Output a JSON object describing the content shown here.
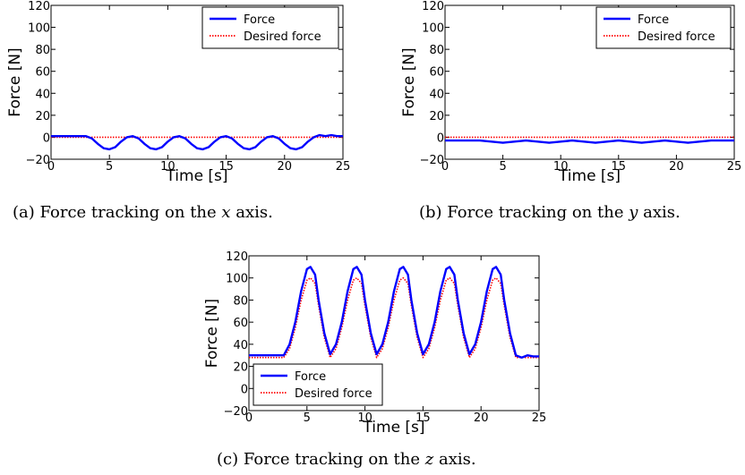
{
  "captions": [
    {
      "before": "(a) Force tracking on the ",
      "var": "x",
      "after": " axis."
    },
    {
      "before": "(b) Force tracking on the ",
      "var": "y",
      "after": " axis."
    },
    {
      "before": "(c) Force tracking on the ",
      "var": "z",
      "after": " axis."
    }
  ],
  "chart_data": [
    {
      "id": "x",
      "type": "line",
      "xlabel": "Time [s]",
      "ylabel": "Force [N]",
      "xlim": [
        0,
        25
      ],
      "ylim": [
        -20,
        120
      ],
      "xticks": [
        0,
        5,
        10,
        15,
        20,
        25
      ],
      "yticks": [
        -20,
        0,
        20,
        40,
        60,
        80,
        100,
        120
      ],
      "grid": false,
      "legend": "top-right",
      "series": [
        {
          "name": "Force",
          "color": "#0000ff",
          "style": "solid",
          "x": [
            0,
            3,
            3.5,
            4,
            4.5,
            5,
            5.5,
            6,
            6.5,
            7,
            7.5,
            8,
            8.5,
            9,
            9.5,
            10,
            10.5,
            11,
            11.5,
            12,
            12.5,
            13,
            13.5,
            14,
            14.5,
            15,
            15.5,
            16,
            16.5,
            17,
            17.5,
            18,
            18.5,
            19,
            19.5,
            20,
            20.5,
            21,
            21.5,
            22,
            22.5,
            23,
            23.5,
            24,
            24.5,
            25
          ],
          "y": [
            1,
            1,
            -1,
            -6,
            -10,
            -11,
            -9,
            -4,
            0,
            1,
            -1,
            -6,
            -10,
            -11,
            -9,
            -4,
            0,
            1,
            -1,
            -6,
            -10,
            -11,
            -9,
            -4,
            0,
            1,
            -1,
            -6,
            -10,
            -11,
            -9,
            -4,
            0,
            1,
            -1,
            -6,
            -10,
            -11,
            -9,
            -4,
            0,
            2,
            1,
            2,
            1,
            1
          ]
        },
        {
          "name": "Desired force",
          "color": "#ff0000",
          "style": "dotted",
          "x": [
            0,
            25
          ],
          "y": [
            0,
            0
          ]
        }
      ]
    },
    {
      "id": "y",
      "type": "line",
      "xlabel": "Time [s]",
      "ylabel": "Force [N]",
      "xlim": [
        0,
        25
      ],
      "ylim": [
        -20,
        120
      ],
      "xticks": [
        0,
        5,
        10,
        15,
        20,
        25
      ],
      "yticks": [
        -20,
        0,
        20,
        40,
        60,
        80,
        100,
        120
      ],
      "grid": false,
      "legend": "top-right",
      "series": [
        {
          "name": "Force",
          "color": "#0000ff",
          "style": "solid",
          "x": [
            0,
            3,
            4,
            5,
            6,
            7,
            8,
            9,
            10,
            11,
            12,
            13,
            14,
            15,
            16,
            17,
            18,
            19,
            20,
            21,
            22,
            23,
            24,
            25
          ],
          "y": [
            -3,
            -3,
            -4,
            -5,
            -4,
            -3,
            -4,
            -5,
            -4,
            -3,
            -4,
            -5,
            -4,
            -3,
            -4,
            -5,
            -4,
            -3,
            -4,
            -5,
            -4,
            -3,
            -3,
            -3
          ]
        },
        {
          "name": "Desired force",
          "color": "#ff0000",
          "style": "dotted",
          "x": [
            0,
            25
          ],
          "y": [
            0,
            0
          ]
        }
      ]
    },
    {
      "id": "z",
      "type": "line",
      "xlabel": "Time [s]",
      "ylabel": "Force [N]",
      "xlim": [
        0,
        25
      ],
      "ylim": [
        -20,
        120
      ],
      "xticks": [
        0,
        5,
        10,
        15,
        20,
        25
      ],
      "yticks": [
        -20,
        0,
        20,
        40,
        60,
        80,
        100,
        120
      ],
      "grid": false,
      "legend": "bottom-left",
      "series": [
        {
          "name": "Force",
          "color": "#0000ff",
          "style": "solid",
          "x": [
            0,
            3,
            3.5,
            4,
            4.5,
            5,
            5.3,
            5.7,
            6,
            6.5,
            7,
            7.5,
            8,
            8.5,
            9,
            9.3,
            9.7,
            10,
            10.5,
            11,
            11.5,
            12,
            12.5,
            13,
            13.3,
            13.7,
            14,
            14.5,
            15,
            15.5,
            16,
            16.5,
            17,
            17.3,
            17.7,
            18,
            18.5,
            19,
            19.5,
            20,
            20.5,
            21,
            21.3,
            21.7,
            22,
            22.5,
            23,
            23.5,
            24,
            24.5,
            25
          ],
          "y": [
            30,
            30,
            40,
            60,
            88,
            108,
            110,
            103,
            80,
            50,
            31,
            40,
            60,
            88,
            108,
            110,
            103,
            80,
            50,
            31,
            40,
            60,
            88,
            108,
            110,
            103,
            80,
            50,
            31,
            40,
            60,
            88,
            108,
            110,
            103,
            80,
            50,
            31,
            40,
            60,
            88,
            108,
            110,
            103,
            80,
            50,
            30,
            28,
            30,
            29,
            29
          ]
        },
        {
          "name": "Desired force",
          "color": "#ff0000",
          "style": "dotted",
          "x": [
            0,
            3,
            3.5,
            4,
            4.5,
            5,
            5.3,
            5.7,
            6,
            6.5,
            7,
            7.5,
            8,
            8.5,
            9,
            9.3,
            9.7,
            10,
            10.5,
            11,
            11.5,
            12,
            12.5,
            13,
            13.3,
            13.7,
            14,
            14.5,
            15,
            15.5,
            16,
            16.5,
            17,
            17.3,
            17.7,
            18,
            18.5,
            19,
            19.5,
            20,
            20.5,
            21,
            21.3,
            21.7,
            22,
            22.5,
            23,
            23.5,
            25
          ],
          "y": [
            28,
            28,
            36,
            55,
            80,
            98,
            100,
            95,
            75,
            46,
            28,
            36,
            55,
            80,
            98,
            100,
            95,
            75,
            46,
            28,
            36,
            55,
            80,
            98,
            100,
            95,
            75,
            46,
            28,
            36,
            55,
            80,
            98,
            100,
            95,
            75,
            46,
            28,
            36,
            55,
            80,
            98,
            100,
            95,
            75,
            46,
            28,
            28,
            28
          ]
        }
      ]
    }
  ]
}
